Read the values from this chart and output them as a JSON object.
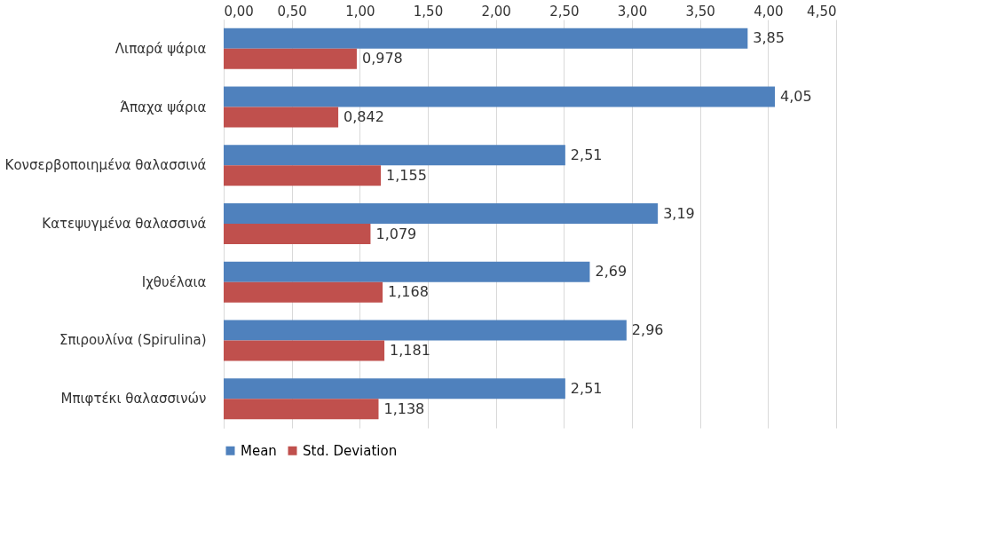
{
  "chart_data": {
    "type": "bar",
    "orientation": "horizontal",
    "categories": [
      "Λιπαρά ψάρια",
      "Άπαχα ψάρια",
      "Κονσερβοποιημένα θαλασσινά",
      "Κατεψυγμένα θαλασσινά",
      "Ιχθυέλαια",
      "Σπιρουλίνα (Spirulina)",
      "Μπιφτέκι θαλασσινών"
    ],
    "series": [
      {
        "name": "Mean",
        "color": "#4f81bd",
        "values": [
          3.85,
          4.05,
          2.51,
          3.19,
          2.69,
          2.96,
          2.51
        ],
        "value_labels": [
          "3,85",
          "4,05",
          "2,51",
          "3,19",
          "2,69",
          "2,96",
          "2,51"
        ]
      },
      {
        "name": "Std. Deviation",
        "color": "#c0504d",
        "values": [
          0.978,
          0.842,
          1.155,
          1.079,
          1.168,
          1.181,
          1.138
        ],
        "value_labels": [
          "0,978",
          "0,842",
          "1,155",
          "1,079",
          "1,168",
          "1,181",
          "1,138"
        ]
      }
    ],
    "xlim": [
      0,
      4.5
    ],
    "xticks": [
      {
        "value": 0,
        "label": "0,00"
      },
      {
        "value": 0.5,
        "label": "0,50"
      },
      {
        "value": 1,
        "label": "1,00"
      },
      {
        "value": 1.5,
        "label": "1,50"
      },
      {
        "value": 2,
        "label": "2,00"
      },
      {
        "value": 2.5,
        "label": "2,50"
      },
      {
        "value": 3,
        "label": "3,00"
      },
      {
        "value": 3.5,
        "label": "3,50"
      },
      {
        "value": 4,
        "label": "4,00"
      },
      {
        "value": 4.5,
        "label": "4,50"
      }
    ],
    "grid": "x",
    "legend": "bottom"
  }
}
